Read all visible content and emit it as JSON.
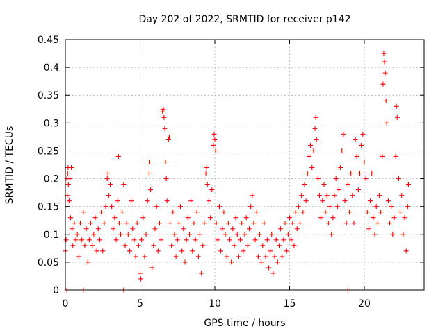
{
  "chart_data": {
    "type": "scatter",
    "title": "Day 202 of 2022, SRMTID for receiver p142",
    "xlabel": "GPS time / hours",
    "ylabel": "SRMTID / TECUs",
    "xlim": [
      0,
      24
    ],
    "ylim": [
      0,
      0.45
    ],
    "x_ticks": [
      0,
      5,
      10,
      15,
      20
    ],
    "x_tick_labels": [
      "0",
      "5",
      "10",
      "15",
      "20"
    ],
    "y_ticks": [
      0,
      0.05,
      0.1,
      0.15,
      0.2,
      0.25,
      0.3,
      0.35,
      0.4,
      0.45
    ],
    "y_tick_labels": [
      "0",
      "0.05",
      "0.1",
      "0.15",
      "0.2",
      "0.25",
      "0.3",
      "0.35",
      "0.4",
      "0.45"
    ],
    "grid": true,
    "marker": "plus",
    "color": "#ff0000",
    "series": [
      {
        "name": "SRMTID",
        "points": [
          [
            0.0,
            0.07
          ],
          [
            0.05,
            0.09
          ],
          [
            0.1,
            0.2
          ],
          [
            0.12,
            0.17
          ],
          [
            0.15,
            0.21
          ],
          [
            0.18,
            0.22
          ],
          [
            0.2,
            0.19
          ],
          [
            0.25,
            0.16
          ],
          [
            0.3,
            0.2
          ],
          [
            0.35,
            0.13
          ],
          [
            0.4,
            0.22
          ],
          [
            0.45,
            0.11
          ],
          [
            0.5,
            0.08
          ],
          [
            0.6,
            0.12
          ],
          [
            0.7,
            0.09
          ],
          [
            0.8,
            0.1
          ],
          [
            0.9,
            0.06
          ],
          [
            1.0,
            0.12
          ],
          [
            1.1,
            0.09
          ],
          [
            1.2,
            0.14
          ],
          [
            1.3,
            0.08
          ],
          [
            1.4,
            0.11
          ],
          [
            1.5,
            0.05
          ],
          [
            1.6,
            0.09
          ],
          [
            1.7,
            0.12
          ],
          [
            1.8,
            0.08
          ],
          [
            1.9,
            0.1
          ],
          [
            2.0,
            0.13
          ],
          [
            2.1,
            0.07
          ],
          [
            2.2,
            0.11
          ],
          [
            2.3,
            0.09
          ],
          [
            2.4,
            0.14
          ],
          [
            2.5,
            0.07
          ],
          [
            2.6,
            0.12
          ],
          [
            2.7,
            0.15
          ],
          [
            2.8,
            0.2
          ],
          [
            2.85,
            0.21
          ],
          [
            2.9,
            0.17
          ],
          [
            3.0,
            0.19
          ],
          [
            3.1,
            0.15
          ],
          [
            3.2,
            0.11
          ],
          [
            3.3,
            0.13
          ],
          [
            3.4,
            0.09
          ],
          [
            3.5,
            0.16
          ],
          [
            3.55,
            0.24
          ],
          [
            3.6,
            0.12
          ],
          [
            3.7,
            0.1
          ],
          [
            3.8,
            0.14
          ],
          [
            3.9,
            0.19
          ],
          [
            4.0,
            0.08
          ],
          [
            4.1,
            0.12
          ],
          [
            4.2,
            0.1
          ],
          [
            4.3,
            0.07
          ],
          [
            4.4,
            0.16
          ],
          [
            4.5,
            0.11
          ],
          [
            4.6,
            0.09
          ],
          [
            4.7,
            0.06
          ],
          [
            4.8,
            0.12
          ],
          [
            4.9,
            0.08
          ],
          [
            5.0,
            0.03
          ],
          [
            5.05,
            0.02
          ],
          [
            5.1,
            0.09
          ],
          [
            5.2,
            0.13
          ],
          [
            5.3,
            0.06
          ],
          [
            5.4,
            0.1
          ],
          [
            5.5,
            0.16
          ],
          [
            5.6,
            0.21
          ],
          [
            5.65,
            0.23
          ],
          [
            5.7,
            0.18
          ],
          [
            5.8,
            0.04
          ],
          [
            5.9,
            0.08
          ],
          [
            6.0,
            0.11
          ],
          [
            6.1,
            0.15
          ],
          [
            6.2,
            0.07
          ],
          [
            6.3,
            0.12
          ],
          [
            6.4,
            0.09
          ],
          [
            6.5,
            0.32
          ],
          [
            6.55,
            0.325
          ],
          [
            6.6,
            0.31
          ],
          [
            6.65,
            0.29
          ],
          [
            6.7,
            0.23
          ],
          [
            6.75,
            0.2
          ],
          [
            6.8,
            0.16
          ],
          [
            6.9,
            0.27
          ],
          [
            6.95,
            0.275
          ],
          [
            7.0,
            0.12
          ],
          [
            7.1,
            0.08
          ],
          [
            7.2,
            0.14
          ],
          [
            7.3,
            0.1
          ],
          [
            7.4,
            0.06
          ],
          [
            7.5,
            0.09
          ],
          [
            7.6,
            0.12
          ],
          [
            7.7,
            0.15
          ],
          [
            7.8,
            0.07
          ],
          [
            7.9,
            0.11
          ],
          [
            8.0,
            0.05
          ],
          [
            8.1,
            0.09
          ],
          [
            8.2,
            0.13
          ],
          [
            8.3,
            0.1
          ],
          [
            8.4,
            0.16
          ],
          [
            8.5,
            0.07
          ],
          [
            8.6,
            0.12
          ],
          [
            8.7,
            0.09
          ],
          [
            8.8,
            0.14
          ],
          [
            8.9,
            0.06
          ],
          [
            9.0,
            0.1
          ],
          [
            9.1,
            0.03
          ],
          [
            9.2,
            0.08
          ],
          [
            9.3,
            0.12
          ],
          [
            9.4,
            0.21
          ],
          [
            9.45,
            0.22
          ],
          [
            9.5,
            0.19
          ],
          [
            9.6,
            0.16
          ],
          [
            9.7,
            0.13
          ],
          [
            9.8,
            0.18
          ],
          [
            9.9,
            0.26
          ],
          [
            9.95,
            0.28
          ],
          [
            10.0,
            0.27
          ],
          [
            10.05,
            0.25
          ],
          [
            10.1,
            0.12
          ],
          [
            10.2,
            0.09
          ],
          [
            10.3,
            0.15
          ],
          [
            10.4,
            0.07
          ],
          [
            10.5,
            0.11
          ],
          [
            10.6,
            0.14
          ],
          [
            10.7,
            0.1
          ],
          [
            10.8,
            0.06
          ],
          [
            10.9,
            0.12
          ],
          [
            11.0,
            0.09
          ],
          [
            11.1,
            0.05
          ],
          [
            11.2,
            0.11
          ],
          [
            11.3,
            0.08
          ],
          [
            11.4,
            0.13
          ],
          [
            11.5,
            0.1
          ],
          [
            11.6,
            0.06
          ],
          [
            11.7,
            0.09
          ],
          [
            11.8,
            0.12
          ],
          [
            11.9,
            0.07
          ],
          [
            12.0,
            0.1
          ],
          [
            12.1,
            0.13
          ],
          [
            12.2,
            0.08
          ],
          [
            12.3,
            0.11
          ],
          [
            12.4,
            0.15
          ],
          [
            12.5,
            0.17
          ],
          [
            12.6,
            0.12
          ],
          [
            12.7,
            0.09
          ],
          [
            12.8,
            0.14
          ],
          [
            12.9,
            0.06
          ],
          [
            13.0,
            0.1
          ],
          [
            13.1,
            0.05
          ],
          [
            13.2,
            0.08
          ],
          [
            13.3,
            0.12
          ],
          [
            13.4,
            0.06
          ],
          [
            13.5,
            0.09
          ],
          [
            13.6,
            0.04
          ],
          [
            13.7,
            0.07
          ],
          [
            13.8,
            0.1
          ],
          [
            13.9,
            0.03
          ],
          [
            14.0,
            0.06
          ],
          [
            14.1,
            0.09
          ],
          [
            14.2,
            0.05
          ],
          [
            14.3,
            0.08
          ],
          [
            14.4,
            0.11
          ],
          [
            14.5,
            0.06
          ],
          [
            14.6,
            0.09
          ],
          [
            14.7,
            0.12
          ],
          [
            14.8,
            0.07
          ],
          [
            14.9,
            0.1
          ],
          [
            15.0,
            0.13
          ],
          [
            15.1,
            0.09
          ],
          [
            15.2,
            0.12
          ],
          [
            15.3,
            0.08
          ],
          [
            15.4,
            0.14
          ],
          [
            15.5,
            0.11
          ],
          [
            15.6,
            0.15
          ],
          [
            15.7,
            0.12
          ],
          [
            15.8,
            0.17
          ],
          [
            15.9,
            0.14
          ],
          [
            16.0,
            0.19
          ],
          [
            16.1,
            0.16
          ],
          [
            16.2,
            0.21
          ],
          [
            16.3,
            0.24
          ],
          [
            16.4,
            0.26
          ],
          [
            16.5,
            0.22
          ],
          [
            16.6,
            0.25
          ],
          [
            16.7,
            0.29
          ],
          [
            16.75,
            0.31
          ],
          [
            16.8,
            0.27
          ],
          [
            16.9,
            0.2
          ],
          [
            17.0,
            0.17
          ],
          [
            17.1,
            0.13
          ],
          [
            17.2,
            0.16
          ],
          [
            17.3,
            0.19
          ],
          [
            17.4,
            0.14
          ],
          [
            17.5,
            0.17
          ],
          [
            17.6,
            0.12
          ],
          [
            17.7,
            0.15
          ],
          [
            17.8,
            0.1
          ],
          [
            17.9,
            0.13
          ],
          [
            18.0,
            0.17
          ],
          [
            18.1,
            0.2
          ],
          [
            18.2,
            0.15
          ],
          [
            18.3,
            0.18
          ],
          [
            18.4,
            0.22
          ],
          [
            18.5,
            0.25
          ],
          [
            18.6,
            0.28
          ],
          [
            18.7,
            0.16
          ],
          [
            18.8,
            0.12
          ],
          [
            18.9,
            0.19
          ],
          [
            19.0,
            0.14
          ],
          [
            19.1,
            0.21
          ],
          [
            19.2,
            0.17
          ],
          [
            19.3,
            0.12
          ],
          [
            19.4,
            0.27
          ],
          [
            19.5,
            0.24
          ],
          [
            19.6,
            0.18
          ],
          [
            19.7,
            0.21
          ],
          [
            19.8,
            0.26
          ],
          [
            19.9,
            0.28
          ],
          [
            20.0,
            0.23
          ],
          [
            20.1,
            0.2
          ],
          [
            20.2,
            0.14
          ],
          [
            20.3,
            0.11
          ],
          [
            20.4,
            0.16
          ],
          [
            20.5,
            0.21
          ],
          [
            20.6,
            0.13
          ],
          [
            20.7,
            0.1
          ],
          [
            20.8,
            0.15
          ],
          [
            20.9,
            0.12
          ],
          [
            21.0,
            0.17
          ],
          [
            21.1,
            0.14
          ],
          [
            21.2,
            0.24
          ],
          [
            21.25,
            0.37
          ],
          [
            21.3,
            0.425
          ],
          [
            21.35,
            0.41
          ],
          [
            21.4,
            0.39
          ],
          [
            21.45,
            0.34
          ],
          [
            21.5,
            0.3
          ],
          [
            21.6,
            0.16
          ],
          [
            21.7,
            0.12
          ],
          [
            21.8,
            0.15
          ],
          [
            21.9,
            0.1
          ],
          [
            22.0,
            0.13
          ],
          [
            22.1,
            0.24
          ],
          [
            22.15,
            0.33
          ],
          [
            22.2,
            0.31
          ],
          [
            22.3,
            0.2
          ],
          [
            22.4,
            0.14
          ],
          [
            22.5,
            0.17
          ],
          [
            22.6,
            0.1
          ],
          [
            22.7,
            0.13
          ],
          [
            22.8,
            0.07
          ],
          [
            22.9,
            0.15
          ],
          [
            22.95,
            0.19
          ],
          [
            0.1,
            0.0
          ],
          [
            1.2,
            0.0
          ],
          [
            3.9,
            0.0
          ],
          [
            18.9,
            0.0
          ]
        ]
      }
    ]
  }
}
